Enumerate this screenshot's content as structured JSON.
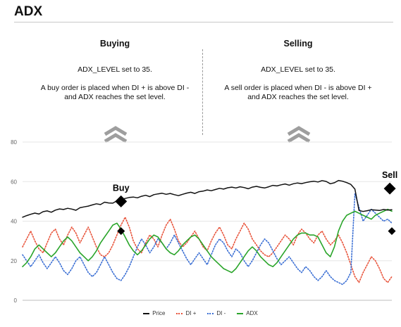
{
  "header": {
    "title": "ADX"
  },
  "buying": {
    "heading": "Buying",
    "line1": "ADX_LEVEL set to 35.",
    "line2": "A buy order is placed when DI + is above DI -",
    "line3": "and ADX reaches the set level."
  },
  "selling": {
    "heading": "Selling",
    "line1": "ADX_LEVEL set to 35.",
    "line2": "A sell order is placed when DI - is above DI +",
    "line3": "and ADX reaches the set level."
  },
  "icons": {
    "buy_arrow": "double-chevron-up-icon",
    "sell_arrow": "double-chevron-up-icon"
  },
  "colors": {
    "price": "#111111",
    "di_plus": "#e8533a",
    "di_minus": "#3b6fd4",
    "adx": "#2aa52a",
    "arrow": "#9e9e9e",
    "grid": "#e6e6e6"
  },
  "chart_data": {
    "type": "line",
    "ylim": [
      0,
      80
    ],
    "yticks": [
      "0",
      "20",
      "40",
      "60",
      "80"
    ],
    "grid": true,
    "legend_position": "bottom-center",
    "x": [
      0,
      1,
      2,
      3,
      4,
      5,
      6,
      7,
      8,
      9,
      10,
      11,
      12,
      13,
      14,
      15,
      16,
      17,
      18,
      19,
      20,
      21,
      22,
      23,
      24,
      25,
      26,
      27,
      28,
      29,
      30,
      31,
      32,
      33,
      34,
      35,
      36,
      37,
      38,
      39,
      40,
      41,
      42,
      43,
      44,
      45,
      46,
      47,
      48,
      49,
      50,
      51,
      52,
      53,
      54,
      55,
      56,
      57,
      58,
      59,
      60,
      61,
      62,
      63,
      64,
      65,
      66,
      67,
      68,
      69,
      70,
      71,
      72,
      73,
      74,
      75,
      76,
      77,
      78,
      79,
      80,
      81,
      82,
      83,
      84,
      85,
      86,
      87,
      88,
      89,
      90
    ],
    "series": [
      {
        "name": "Price",
        "key": "price",
        "style": "solid",
        "values": [
          42.0,
          42.8,
          43.5,
          44.1,
          43.6,
          44.8,
          45.2,
          44.5,
          45.6,
          46.2,
          45.9,
          46.5,
          46.1,
          45.5,
          46.8,
          47.2,
          47.6,
          48.2,
          48.8,
          48.4,
          49.6,
          49.2,
          49.1,
          50.3,
          51.0,
          51.5,
          52.0,
          52.2,
          51.8,
          52.6,
          53.1,
          52.4,
          53.4,
          53.8,
          54.1,
          53.6,
          54.0,
          53.4,
          52.9,
          53.6,
          54.2,
          54.6,
          54.0,
          54.9,
          55.2,
          55.8,
          55.4,
          56.0,
          56.6,
          56.2,
          56.9,
          57.2,
          56.8,
          57.4,
          57.0,
          56.4,
          57.2,
          57.6,
          57.1,
          56.8,
          57.4,
          58.1,
          57.8,
          58.4,
          58.8,
          58.2,
          58.9,
          59.3,
          59.0,
          59.5,
          59.9,
          60.2,
          59.8,
          60.5,
          60.1,
          58.9,
          59.4,
          60.6,
          60.2,
          59.5,
          58.6,
          56.2,
          45.4,
          44.9,
          45.3,
          45.8,
          45.6,
          45.4,
          45.9,
          45.6,
          45.8
        ]
      },
      {
        "name": "DI +",
        "key": "di_plus",
        "style": "dotted",
        "values": [
          27,
          31,
          35,
          30,
          26,
          24,
          29,
          34,
          36,
          31,
          28,
          33,
          37,
          34,
          29,
          33,
          37,
          32,
          27,
          23,
          22,
          24,
          28,
          33,
          38,
          42,
          37,
          30,
          26,
          24,
          29,
          33,
          31,
          27,
          33,
          38,
          41,
          36,
          30,
          27,
          29,
          32,
          35,
          31,
          27,
          25,
          30,
          34,
          37,
          33,
          28,
          26,
          31,
          35,
          39,
          36,
          31,
          28,
          25,
          23,
          22,
          24,
          27,
          30,
          33,
          31,
          28,
          33,
          36,
          34,
          31,
          29,
          33,
          35,
          31,
          28,
          30,
          33,
          29,
          24,
          18,
          12,
          9,
          14,
          18,
          22,
          20,
          16,
          11,
          9,
          12
        ]
      },
      {
        "name": "DI -",
        "key": "di_minus",
        "style": "dotted",
        "values": [
          23,
          20,
          17,
          20,
          23,
          19,
          16,
          19,
          22,
          19,
          15,
          13,
          16,
          20,
          22,
          18,
          14,
          12,
          14,
          18,
          22,
          18,
          14,
          11,
          10,
          13,
          17,
          22,
          27,
          31,
          28,
          24,
          27,
          31,
          29,
          26,
          29,
          33,
          29,
          25,
          21,
          18,
          21,
          24,
          21,
          18,
          23,
          28,
          31,
          29,
          25,
          22,
          26,
          24,
          20,
          17,
          20,
          24,
          28,
          31,
          29,
          25,
          21,
          18,
          20,
          22,
          19,
          16,
          14,
          17,
          15,
          12,
          10,
          12,
          15,
          12,
          10,
          9,
          8,
          10,
          14,
          54,
          47,
          40,
          43,
          46,
          44,
          42,
          40,
          41,
          39
        ]
      },
      {
        "name": "ADX",
        "key": "adx",
        "style": "solid",
        "values": [
          17,
          19,
          22,
          26,
          28,
          26,
          24,
          22,
          24,
          27,
          30,
          32,
          30,
          27,
          24,
          22,
          20,
          22,
          25,
          29,
          32,
          35,
          38,
          39,
          36,
          32,
          28,
          25,
          23,
          25,
          28,
          31,
          33,
          32,
          29,
          26,
          24,
          23,
          25,
          28,
          30,
          32,
          33,
          31,
          28,
          25,
          22,
          20,
          18,
          16,
          15,
          14,
          16,
          19,
          22,
          25,
          27,
          25,
          22,
          20,
          18,
          17,
          19,
          22,
          25,
          28,
          31,
          33,
          34,
          34,
          33,
          33,
          32,
          28,
          24,
          22,
          27,
          35,
          40,
          43,
          44,
          45,
          44,
          43,
          42,
          41,
          43,
          44,
          45,
          46,
          45
        ]
      }
    ],
    "annotations": [
      {
        "text": "Buy",
        "x": 24,
        "y": 50
      },
      {
        "text": "Sell",
        "x": 89.5,
        "y": 56.5
      }
    ],
    "markers": [
      {
        "series": "price",
        "x": 24,
        "y": 50,
        "size": "large"
      },
      {
        "series": "adx",
        "x": 24,
        "y": 35,
        "size": "small"
      },
      {
        "series": "price",
        "x": 89.5,
        "y": 56.5,
        "size": "large"
      },
      {
        "series": "adx",
        "x": 90,
        "y": 35,
        "size": "small"
      }
    ]
  }
}
